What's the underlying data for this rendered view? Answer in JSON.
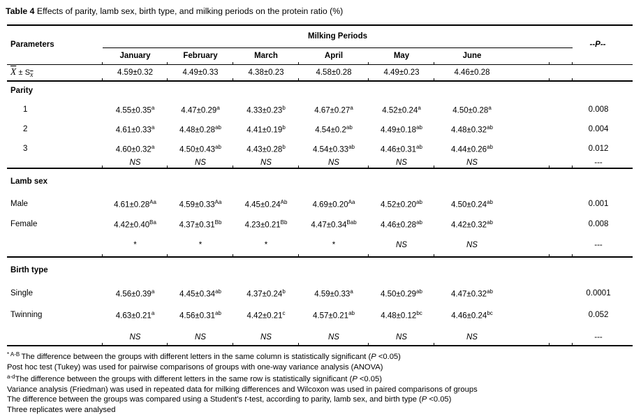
{
  "title": {
    "bold": "Table 4",
    "rest": " Effects of parity, lamb sex, birth type, and milking periods on the protein ratio (%)"
  },
  "table": {
    "header": {
      "parameters": "Parameters",
      "group": "Milking Periods",
      "months": [
        "January",
        "February",
        "March",
        "April",
        "May",
        "June"
      ],
      "p": "--P--"
    },
    "overall": {
      "label": {
        "x": "X",
        "pm": "±",
        "s": "S",
        "sub": "x"
      },
      "values": [
        "4.59±0.32",
        "4.49±0.33",
        "4.38±0.23",
        "4.58±0.28",
        "4.49±0.23",
        "4.46±0.28"
      ],
      "p": ""
    },
    "sections": [
      {
        "id": "parity",
        "label": "Parity",
        "indent": true,
        "rows": [
          {
            "label": "1",
            "cells": [
              {
                "v": "4.55±0.35",
                "s": "a"
              },
              {
                "v": "4.47±0.29",
                "s": "a"
              },
              {
                "v": "4.33±0.23",
                "s": "b"
              },
              {
                "v": "4.67±0.27",
                "s": "a"
              },
              {
                "v": "4.52±0.24",
                "s": "a"
              },
              {
                "v": "4.50±0.28",
                "s": "a"
              }
            ],
            "p": "0.008"
          },
          {
            "label": "2",
            "cells": [
              {
                "v": "4.61±0.33",
                "s": "a"
              },
              {
                "v": "4.48±0.28",
                "s": "ab"
              },
              {
                "v": "4.41±0.19",
                "s": "b"
              },
              {
                "v": "4.54±0.2",
                "s": "ab"
              },
              {
                "v": "4.49±0.18",
                "s": "ab"
              },
              {
                "v": "4.48±0.32",
                "s": "ab"
              }
            ],
            "p": "0.004"
          },
          {
            "label": "3",
            "cells": [
              {
                "v": "4.60±0.32",
                "s": "a"
              },
              {
                "v": "4.50±0.43",
                "s": "ab"
              },
              {
                "v": "4.43±0.28",
                "s": "b"
              },
              {
                "v": "4.54±0.33",
                "s": "ab"
              },
              {
                "v": "4.46±0.31",
                "s": "ab"
              },
              {
                "v": "4.44±0.26",
                "s": "ab"
              }
            ],
            "p": "0.012"
          }
        ],
        "sig": {
          "cells": [
            "NS",
            "NS",
            "NS",
            "NS",
            "NS",
            "NS"
          ],
          "p": "---"
        }
      },
      {
        "id": "lamb-sex",
        "label": "Lamb sex",
        "indent": false,
        "rows": [
          {
            "label": "Male",
            "cells": [
              {
                "v": "4.61±0.28",
                "s": "Aa"
              },
              {
                "v": "4.59±0.33",
                "s": "Aa"
              },
              {
                "v": "4.45±0.24",
                "s": "Ab"
              },
              {
                "v": "4.69±0.20",
                "s": "Aa"
              },
              {
                "v": "4.52±0.20",
                "s": "ab"
              },
              {
                "v": "4.50±0.24",
                "s": "ab"
              }
            ],
            "p": "0.001"
          },
          {
            "label": "Female",
            "cells": [
              {
                "v": "4.42±0.40",
                "s": "Ba"
              },
              {
                "v": "4.37±0.31",
                "s": "Bb"
              },
              {
                "v": "4.23±0.21",
                "s": "Bb"
              },
              {
                "v": "4.47±0.34",
                "s": "Bab"
              },
              {
                "v": "4.46±0.28",
                "s": "ab"
              },
              {
                "v": "4.42±0.32",
                "s": "ab"
              }
            ],
            "p": "0.008"
          }
        ],
        "sig": {
          "cells": [
            "*",
            "*",
            "*",
            "*",
            "NS",
            "NS"
          ],
          "p": "---"
        }
      },
      {
        "id": "birth-type",
        "label": "Birth type",
        "indent": false,
        "rows": [
          {
            "label": "Single",
            "cells": [
              {
                "v": "4.56±0.39",
                "s": "a"
              },
              {
                "v": "4.45±0.34",
                "s": "ab"
              },
              {
                "v": "4.37±0.24",
                "s": "b"
              },
              {
                "v": "4.59±0.33",
                "s": "a"
              },
              {
                "v": "4.50±0.29",
                "s": "ab"
              },
              {
                "v": "4.47±0.32",
                "s": "ab"
              }
            ],
            "p": "0.0001"
          },
          {
            "label": "Twinning",
            "cells": [
              {
                "v": "4.63±0.21",
                "s": "a"
              },
              {
                "v": "4.56±0.31",
                "s": "ab"
              },
              {
                "v": "4.42±0.21",
                "s": "c"
              },
              {
                "v": "4.57±0.21",
                "s": "ab"
              },
              {
                "v": "4.48±0.12",
                "s": "bc"
              },
              {
                "v": "4.46±0.24",
                "s": "bc"
              }
            ],
            "p": "0.052"
          }
        ],
        "sig": {
          "cells": [
            "NS",
            "NS",
            "NS",
            "NS",
            "NS",
            "NS"
          ],
          "p": "---"
        }
      }
    ]
  },
  "footnotes": [
    [
      {
        "t": "* A-B ",
        "st": "sup"
      },
      {
        "t": "The difference between the groups with different letters in the same column is statistically significant (",
        "st": ""
      },
      {
        "t": "P",
        "st": "i"
      },
      {
        "t": " <0.05)",
        "st": ""
      }
    ],
    [
      {
        "t": "Post hoc test (Tukey) was used for pairwise comparisons of groups with one-way variance analysis (ANOVA)",
        "st": ""
      }
    ],
    [
      {
        "t": "a-d",
        "st": "sup"
      },
      {
        "t": "The difference between the groups with different letters in the same row is statistically significant (",
        "st": ""
      },
      {
        "t": "P",
        "st": "i"
      },
      {
        "t": " <0.05)",
        "st": ""
      }
    ],
    [
      {
        "t": "Variance analysis (Friedman) was used in repeated data for milking differences and Wilcoxon was used in paired comparisons of groups",
        "st": ""
      }
    ],
    [
      {
        "t": "The difference between the groups was compared using a Student's ",
        "st": ""
      },
      {
        "t": "t",
        "st": "i"
      },
      {
        "t": "-test, according to parity, lamb sex, and birth type (",
        "st": ""
      },
      {
        "t": "P",
        "st": "i"
      },
      {
        "t": " <0.05)",
        "st": ""
      }
    ],
    [
      {
        "t": "Three replicates were analysed",
        "st": ""
      }
    ]
  ]
}
